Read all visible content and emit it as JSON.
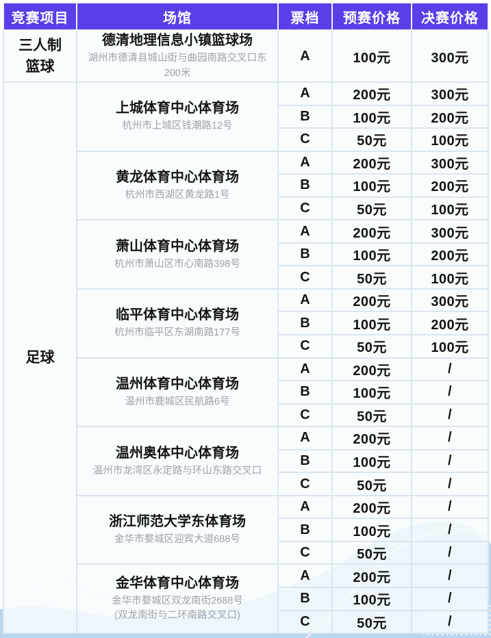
{
  "colors": {
    "header_bg": "#5a3fe8",
    "table_border": "#d8e6f0",
    "wave_blue": "#b9d6ef",
    "wave_light_blue": "#d9e8f6",
    "address_gray": "#9aa3ac"
  },
  "table": {
    "headers": [
      "竞赛项目",
      "场馆",
      "票档",
      "预赛价格",
      "决赛价格"
    ],
    "sections": [
      {
        "sport": "三人制\n篮球",
        "venues": [
          {
            "name": "德清地理信息小镇篮球场",
            "address": "湖州市德清县城山街与曲园南路交叉口东200米",
            "tiers": [
              {
                "tier": "A",
                "prelim": "100元",
                "final": "300元"
              }
            ]
          }
        ]
      },
      {
        "sport": "足球",
        "venues": [
          {
            "name": "上城体育中心体育场",
            "address": "杭州市上城区钱潮路12号",
            "tiers": [
              {
                "tier": "A",
                "prelim": "200元",
                "final": "300元"
              },
              {
                "tier": "B",
                "prelim": "100元",
                "final": "200元"
              },
              {
                "tier": "C",
                "prelim": "50元",
                "final": "100元"
              }
            ]
          },
          {
            "name": "黄龙体育中心体育场",
            "address": "杭州市西湖区黄龙路1号",
            "tiers": [
              {
                "tier": "A",
                "prelim": "200元",
                "final": "300元"
              },
              {
                "tier": "B",
                "prelim": "100元",
                "final": "200元"
              },
              {
                "tier": "C",
                "prelim": "50元",
                "final": "100元"
              }
            ]
          },
          {
            "name": "萧山体育中心体育场",
            "address": "杭州市萧山区市心南路398号",
            "tiers": [
              {
                "tier": "A",
                "prelim": "200元",
                "final": "300元"
              },
              {
                "tier": "B",
                "prelim": "100元",
                "final": "200元"
              },
              {
                "tier": "C",
                "prelim": "50元",
                "final": "100元"
              }
            ]
          },
          {
            "name": "临平体育中心体育场",
            "address": "杭州市临平区东湖南路177号",
            "tiers": [
              {
                "tier": "A",
                "prelim": "200元",
                "final": "300元"
              },
              {
                "tier": "B",
                "prelim": "100元",
                "final": "200元"
              },
              {
                "tier": "C",
                "prelim": "50元",
                "final": "100元"
              }
            ]
          },
          {
            "name": "温州体育中心体育场",
            "address": "温州市鹿城区民航路6号",
            "tiers": [
              {
                "tier": "A",
                "prelim": "200元",
                "final": "/"
              },
              {
                "tier": "B",
                "prelim": "100元",
                "final": "/"
              },
              {
                "tier": "C",
                "prelim": "50元",
                "final": "/"
              }
            ]
          },
          {
            "name": "温州奥体中心体育场",
            "address": "温州市龙湾区永定路与环山东路交叉口",
            "tiers": [
              {
                "tier": "A",
                "prelim": "200元",
                "final": "/"
              },
              {
                "tier": "B",
                "prelim": "100元",
                "final": "/"
              },
              {
                "tier": "C",
                "prelim": "50元",
                "final": "/"
              }
            ]
          },
          {
            "name": "浙江师范大学东体育场",
            "address": "金华市婺城区迎宾大道688号",
            "tiers": [
              {
                "tier": "A",
                "prelim": "200元",
                "final": "/"
              },
              {
                "tier": "B",
                "prelim": "100元",
                "final": "/"
              },
              {
                "tier": "C",
                "prelim": "50元",
                "final": "/"
              }
            ]
          },
          {
            "name": "金华体育中心体育场",
            "address": "金华市婺城区双龙南街2688号\n(双龙南街与二环南路交叉口)",
            "tiers": [
              {
                "tier": "A",
                "prelim": "200元",
                "final": "/"
              },
              {
                "tier": "B",
                "prelim": "100元",
                "final": "/"
              },
              {
                "tier": "C",
                "prelim": "50元",
                "final": "/"
              }
            ]
          }
        ]
      }
    ]
  }
}
